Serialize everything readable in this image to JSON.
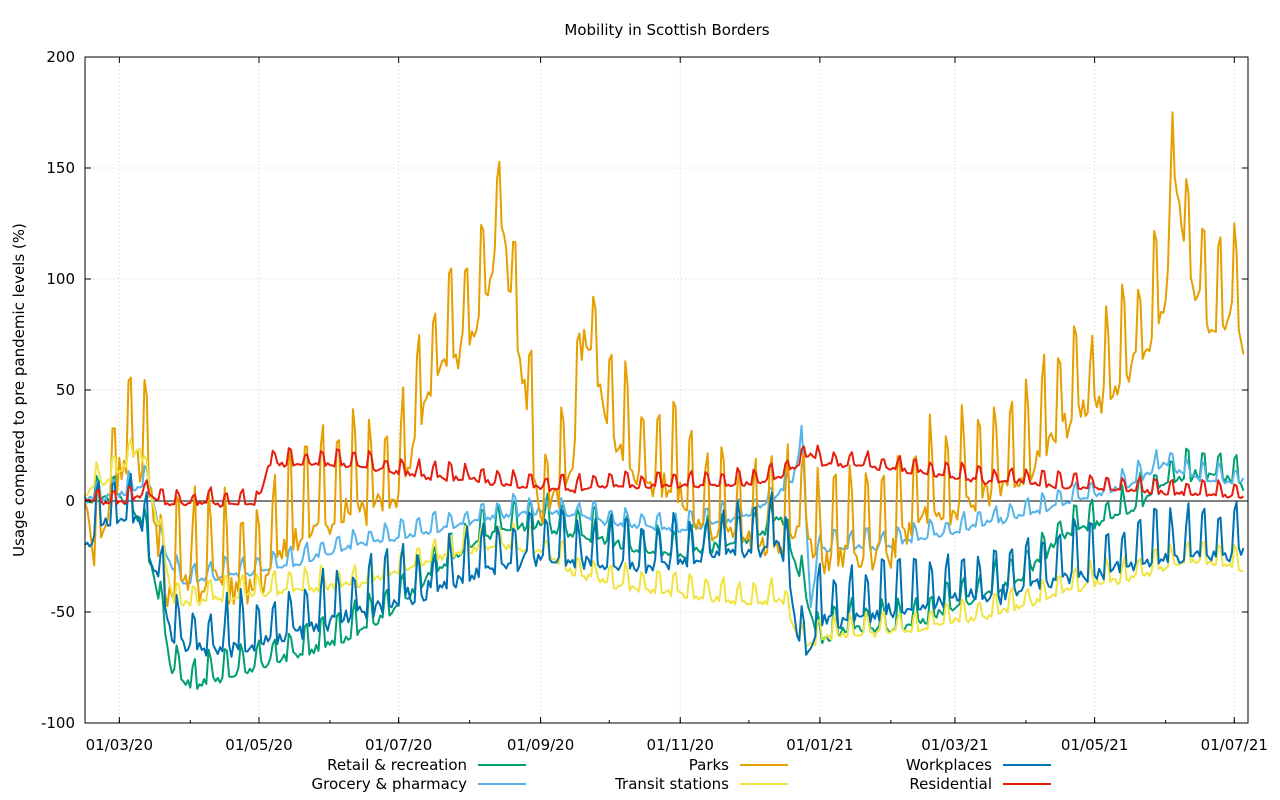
{
  "chart_data": {
    "type": "line",
    "title": "Mobility in Scottish Borders",
    "ylabel": "Usage compared to pre pandemic levels (%)",
    "xlabel": "",
    "x_start": "2020-02-15",
    "x_end": "2021-07-07",
    "ylim": [
      -100,
      200
    ],
    "y_ticks": [
      -100,
      -50,
      0,
      50,
      100,
      150,
      200
    ],
    "x_ticks": [
      {
        "date": "2020-03-01",
        "label": "01/03/20"
      },
      {
        "date": "2020-05-01",
        "label": "01/05/20"
      },
      {
        "date": "2020-07-01",
        "label": "01/07/20"
      },
      {
        "date": "2020-09-01",
        "label": "01/09/20"
      },
      {
        "date": "2020-11-01",
        "label": "01/11/20"
      },
      {
        "date": "2021-01-01",
        "label": "01/01/21"
      },
      {
        "date": "2021-03-01",
        "label": "01/03/21"
      },
      {
        "date": "2021-05-01",
        "label": "01/05/21"
      },
      {
        "date": "2021-07-01",
        "label": "01/07/21"
      }
    ],
    "grid": true,
    "legend_position": "bottom",
    "series": [
      {
        "name": "Retail & recreation",
        "color": "#009e73",
        "points": [
          [
            "2020-02-15",
            3
          ],
          [
            "2020-03-01",
            5
          ],
          [
            "2020-03-10",
            -5
          ],
          [
            "2020-03-18",
            -40
          ],
          [
            "2020-03-24",
            -75
          ],
          [
            "2020-04-01",
            -80
          ],
          [
            "2020-04-15",
            -77
          ],
          [
            "2020-05-01",
            -72
          ],
          [
            "2020-05-15",
            -67
          ],
          [
            "2020-06-01",
            -63
          ],
          [
            "2020-06-15",
            -55
          ],
          [
            "2020-07-01",
            -45
          ],
          [
            "2020-07-15",
            -30
          ],
          [
            "2020-08-01",
            -18
          ],
          [
            "2020-08-15",
            -10
          ],
          [
            "2020-09-01",
            -8
          ],
          [
            "2020-09-15",
            -12
          ],
          [
            "2020-10-01",
            -15
          ],
          [
            "2020-10-15",
            -20
          ],
          [
            "2020-11-01",
            -22
          ],
          [
            "2020-11-15",
            -18
          ],
          [
            "2020-12-01",
            -15
          ],
          [
            "2020-12-15",
            -5
          ],
          [
            "2020-12-27",
            -45
          ],
          [
            "2021-01-01",
            -60
          ],
          [
            "2021-01-15",
            -55
          ],
          [
            "2021-02-01",
            -55
          ],
          [
            "2021-02-15",
            -52
          ],
          [
            "2021-03-01",
            -45
          ],
          [
            "2021-03-15",
            -40
          ],
          [
            "2021-04-01",
            -30
          ],
          [
            "2021-04-15",
            -15
          ],
          [
            "2021-05-01",
            -8
          ],
          [
            "2021-05-15",
            -3
          ],
          [
            "2021-06-01",
            10
          ],
          [
            "2021-06-15",
            15
          ],
          [
            "2021-07-01",
            12
          ],
          [
            "2021-07-05",
            8
          ]
        ]
      },
      {
        "name": "Grocery & pharmacy",
        "color": "#56b4e9",
        "points": [
          [
            "2020-02-15",
            2
          ],
          [
            "2020-03-01",
            4
          ],
          [
            "2020-03-14",
            10
          ],
          [
            "2020-03-20",
            -20
          ],
          [
            "2020-03-28",
            -35
          ],
          [
            "2020-04-15",
            -33
          ],
          [
            "2020-05-01",
            -30
          ],
          [
            "2020-05-15",
            -27
          ],
          [
            "2020-06-01",
            -22
          ],
          [
            "2020-06-15",
            -18
          ],
          [
            "2020-07-01",
            -15
          ],
          [
            "2020-07-15",
            -12
          ],
          [
            "2020-08-01",
            -8
          ],
          [
            "2020-08-15",
            -5
          ],
          [
            "2020-09-01",
            -3
          ],
          [
            "2020-09-15",
            -5
          ],
          [
            "2020-10-01",
            -8
          ],
          [
            "2020-10-15",
            -10
          ],
          [
            "2020-11-01",
            -12
          ],
          [
            "2020-11-15",
            -8
          ],
          [
            "2020-12-01",
            -5
          ],
          [
            "2020-12-20",
            10
          ],
          [
            "2020-12-24",
            30
          ],
          [
            "2020-12-28",
            -45
          ],
          [
            "2021-01-01",
            -20
          ],
          [
            "2021-01-15",
            -20
          ],
          [
            "2021-02-01",
            -18
          ],
          [
            "2021-02-15",
            -15
          ],
          [
            "2021-03-01",
            -12
          ],
          [
            "2021-03-15",
            -8
          ],
          [
            "2021-04-01",
            -5
          ],
          [
            "2021-04-15",
            0
          ],
          [
            "2021-05-01",
            5
          ],
          [
            "2021-05-15",
            8
          ],
          [
            "2021-06-01",
            18
          ],
          [
            "2021-06-15",
            12
          ],
          [
            "2021-07-01",
            10
          ],
          [
            "2021-07-05",
            12
          ]
        ]
      },
      {
        "name": "Parks",
        "color": "#e69f00",
        "points": [
          [
            "2020-02-15",
            10
          ],
          [
            "2020-02-20",
            -20
          ],
          [
            "2020-03-01",
            20
          ],
          [
            "2020-03-08",
            25
          ],
          [
            "2020-03-15",
            15
          ],
          [
            "2020-03-20",
            -35
          ],
          [
            "2020-04-01",
            -28
          ],
          [
            "2020-04-15",
            -30
          ],
          [
            "2020-05-01",
            -30
          ],
          [
            "2020-05-15",
            -10
          ],
          [
            "2020-06-01",
            0
          ],
          [
            "2020-06-15",
            5
          ],
          [
            "2020-07-01",
            10
          ],
          [
            "2020-07-10",
            45
          ],
          [
            "2020-07-20",
            70
          ],
          [
            "2020-08-01",
            80
          ],
          [
            "2020-08-10",
            110
          ],
          [
            "2020-08-15",
            130
          ],
          [
            "2020-08-25",
            60
          ],
          [
            "2020-09-01",
            0
          ],
          [
            "2020-09-15",
            20
          ],
          [
            "2020-09-20",
            85
          ],
          [
            "2020-10-01",
            40
          ],
          [
            "2020-10-15",
            20
          ],
          [
            "2020-11-01",
            10
          ],
          [
            "2020-11-15",
            -5
          ],
          [
            "2020-12-01",
            -10
          ],
          [
            "2020-12-15",
            -15
          ],
          [
            "2020-12-25",
            0
          ],
          [
            "2021-01-01",
            -20
          ],
          [
            "2021-01-15",
            -15
          ],
          [
            "2021-02-01",
            -15
          ],
          [
            "2021-02-15",
            0
          ],
          [
            "2021-03-01",
            5
          ],
          [
            "2021-03-15",
            10
          ],
          [
            "2021-04-01",
            20
          ],
          [
            "2021-04-15",
            40
          ],
          [
            "2021-05-01",
            50
          ],
          [
            "2021-05-15",
            65
          ],
          [
            "2021-05-25",
            80
          ],
          [
            "2021-06-01",
            100
          ],
          [
            "2021-06-05",
            155
          ],
          [
            "2021-06-10",
            115
          ],
          [
            "2021-06-20",
            85
          ],
          [
            "2021-07-01",
            95
          ],
          [
            "2021-07-05",
            75
          ]
        ]
      },
      {
        "name": "Transit stations",
        "color": "#f0e442",
        "points": [
          [
            "2020-02-15",
            5
          ],
          [
            "2020-03-01",
            15
          ],
          [
            "2020-03-10",
            25
          ],
          [
            "2020-03-18",
            -10
          ],
          [
            "2020-03-25",
            -45
          ],
          [
            "2020-04-15",
            -42
          ],
          [
            "2020-05-01",
            -40
          ],
          [
            "2020-05-15",
            -38
          ],
          [
            "2020-06-01",
            -37
          ],
          [
            "2020-06-15",
            -35
          ],
          [
            "2020-07-01",
            -30
          ],
          [
            "2020-07-15",
            -25
          ],
          [
            "2020-08-01",
            -20
          ],
          [
            "2020-08-15",
            -18
          ],
          [
            "2020-09-01",
            -20
          ],
          [
            "2020-09-15",
            -30
          ],
          [
            "2020-10-01",
            -35
          ],
          [
            "2020-10-15",
            -38
          ],
          [
            "2020-11-01",
            -40
          ],
          [
            "2020-11-15",
            -42
          ],
          [
            "2020-12-01",
            -45
          ],
          [
            "2020-12-15",
            -42
          ],
          [
            "2020-12-25",
            -65
          ],
          [
            "2021-01-01",
            -60
          ],
          [
            "2021-01-15",
            -58
          ],
          [
            "2021-02-01",
            -57
          ],
          [
            "2021-02-15",
            -55
          ],
          [
            "2021-03-01",
            -52
          ],
          [
            "2021-03-15",
            -50
          ],
          [
            "2021-04-01",
            -45
          ],
          [
            "2021-04-15",
            -40
          ],
          [
            "2021-05-01",
            -35
          ],
          [
            "2021-05-15",
            -33
          ],
          [
            "2021-06-01",
            -28
          ],
          [
            "2021-06-15",
            -25
          ],
          [
            "2021-07-01",
            -28
          ],
          [
            "2021-07-05",
            -30
          ]
        ]
      },
      {
        "name": "Workplaces",
        "color": "#0072b2",
        "points": [
          [
            "2020-02-15",
            -15
          ],
          [
            "2020-03-01",
            -2
          ],
          [
            "2020-03-10",
            -5
          ],
          [
            "2020-03-18",
            -30
          ],
          [
            "2020-03-25",
            -60
          ],
          [
            "2020-04-15",
            -62
          ],
          [
            "2020-05-01",
            -60
          ],
          [
            "2020-05-15",
            -55
          ],
          [
            "2020-06-01",
            -50
          ],
          [
            "2020-06-15",
            -45
          ],
          [
            "2020-07-01",
            -40
          ],
          [
            "2020-07-15",
            -35
          ],
          [
            "2020-08-01",
            -30
          ],
          [
            "2020-08-15",
            -25
          ],
          [
            "2020-09-01",
            -20
          ],
          [
            "2020-09-15",
            -22
          ],
          [
            "2020-10-01",
            -25
          ],
          [
            "2020-10-15",
            -25
          ],
          [
            "2020-11-01",
            -22
          ],
          [
            "2020-11-15",
            -20
          ],
          [
            "2020-12-01",
            -18
          ],
          [
            "2020-12-15",
            -15
          ],
          [
            "2020-12-25",
            -70
          ],
          [
            "2021-01-01",
            -50
          ],
          [
            "2021-01-15",
            -48
          ],
          [
            "2021-02-01",
            -45
          ],
          [
            "2021-02-15",
            -42
          ],
          [
            "2021-03-01",
            -40
          ],
          [
            "2021-03-15",
            -38
          ],
          [
            "2021-04-01",
            -35
          ],
          [
            "2021-04-15",
            -30
          ],
          [
            "2021-05-01",
            -28
          ],
          [
            "2021-05-15",
            -25
          ],
          [
            "2021-06-01",
            -22
          ],
          [
            "2021-06-15",
            -20
          ],
          [
            "2021-07-01",
            -20
          ],
          [
            "2021-07-05",
            -17
          ]
        ]
      },
      {
        "name": "Residential",
        "color": "#e51e10",
        "points": [
          [
            "2020-02-15",
            1
          ],
          [
            "2020-03-01",
            0
          ],
          [
            "2020-03-14",
            5
          ],
          [
            "2020-03-20",
            0
          ],
          [
            "2020-04-15",
            0
          ],
          [
            "2020-05-01",
            0
          ],
          [
            "2020-05-05",
            18
          ],
          [
            "2020-06-01",
            18
          ],
          [
            "2020-06-15",
            17
          ],
          [
            "2020-07-01",
            14
          ],
          [
            "2020-07-15",
            12
          ],
          [
            "2020-08-01",
            11
          ],
          [
            "2020-08-15",
            9
          ],
          [
            "2020-09-01",
            7
          ],
          [
            "2020-09-15",
            6
          ],
          [
            "2020-10-01",
            8
          ],
          [
            "2020-10-15",
            8
          ],
          [
            "2020-11-01",
            8
          ],
          [
            "2020-11-15",
            9
          ],
          [
            "2020-12-01",
            9
          ],
          [
            "2020-12-15",
            12
          ],
          [
            "2020-12-28",
            22
          ],
          [
            "2021-01-01",
            18
          ],
          [
            "2021-01-15",
            17
          ],
          [
            "2021-02-01",
            16
          ],
          [
            "2021-02-15",
            14
          ],
          [
            "2021-03-01",
            12
          ],
          [
            "2021-03-15",
            10
          ],
          [
            "2021-04-01",
            10
          ],
          [
            "2021-04-15",
            8
          ],
          [
            "2021-05-01",
            7
          ],
          [
            "2021-05-15",
            6
          ],
          [
            "2021-06-01",
            5
          ],
          [
            "2021-06-15",
            4
          ],
          [
            "2021-07-01",
            4
          ],
          [
            "2021-07-05",
            3
          ]
        ]
      }
    ]
  }
}
